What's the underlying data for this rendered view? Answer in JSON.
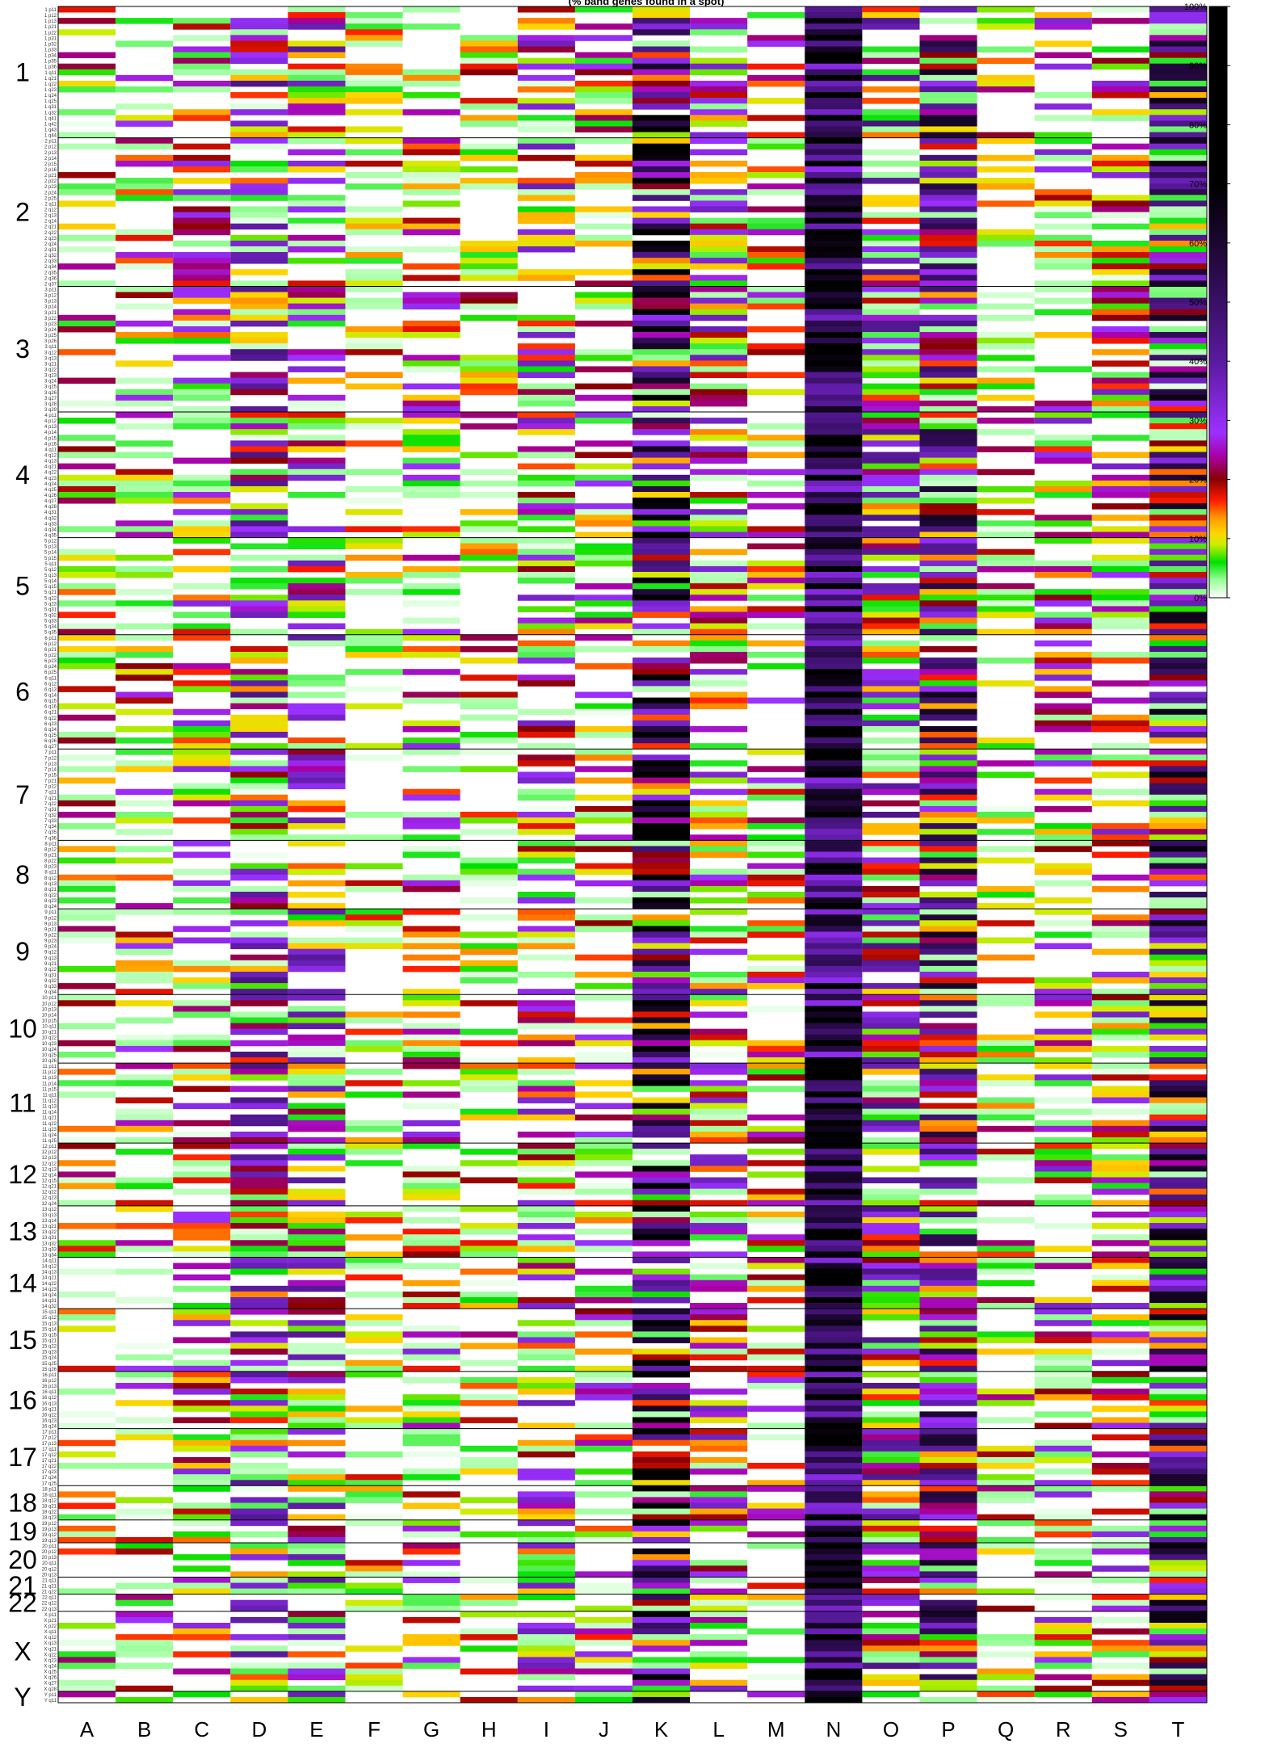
{
  "chart_data": {
    "type": "heatmap",
    "title": "(% band genes found in a spot)",
    "columns": [
      "A",
      "B",
      "C",
      "D",
      "E",
      "F",
      "G",
      "H",
      "I",
      "J",
      "K",
      "L",
      "M",
      "N",
      "O",
      "P",
      "Q",
      "R",
      "S",
      "T"
    ],
    "column_density": [
      0.3,
      0.42,
      0.55,
      0.72,
      0.65,
      0.3,
      0.48,
      0.32,
      0.58,
      0.45,
      0.9,
      0.62,
      0.4,
      1.0,
      0.8,
      0.9,
      0.35,
      0.52,
      0.55,
      0.95
    ],
    "column_level": [
      0.1,
      0.12,
      0.14,
      0.2,
      0.18,
      0.08,
      0.14,
      0.1,
      0.16,
      0.13,
      0.38,
      0.16,
      0.12,
      0.62,
      0.2,
      0.28,
      0.1,
      0.15,
      0.15,
      0.3
    ],
    "chromosomes": [
      {
        "label": "1",
        "bands": [
          "1 p11",
          "1 p12",
          "1 p13",
          "1 p21",
          "1 p22",
          "1 p31",
          "1 p32",
          "1 p33",
          "1 p34",
          "1 p35",
          "1 p36",
          "1 q11",
          "1 q21",
          "1 q22",
          "1 q23",
          "1 q24",
          "1 q25",
          "1 q31",
          "1 q32",
          "1 q41",
          "1 q42",
          "1 q43",
          "1 q44"
        ]
      },
      {
        "label": "2",
        "bands": [
          "2 p11",
          "2 p12",
          "2 p13",
          "2 p14",
          "2 p15",
          "2 p16",
          "2 p21",
          "2 p22",
          "2 p23",
          "2 p24",
          "2 p25",
          "2 q11",
          "2 q12",
          "2 q13",
          "2 q14",
          "2 q21",
          "2 q22",
          "2 q23",
          "2 q24",
          "2 q31",
          "2 q32",
          "2 q33",
          "2 q34",
          "2 q35",
          "2 q36",
          "2 q37"
        ]
      },
      {
        "label": "3",
        "bands": [
          "3 p11",
          "3 p12",
          "3 p13",
          "3 p14",
          "3 p21",
          "3 p22",
          "3 p23",
          "3 p24",
          "3 p25",
          "3 p26",
          "3 q11",
          "3 q12",
          "3 q13",
          "3 q21",
          "3 q22",
          "3 q23",
          "3 q24",
          "3 q25",
          "3 q26",
          "3 q27",
          "3 q28",
          "3 q29"
        ]
      },
      {
        "label": "4",
        "bands": [
          "4 p11",
          "4 p12",
          "4 p13",
          "4 p14",
          "4 p15",
          "4 p16",
          "4 q11",
          "4 q12",
          "4 q13",
          "4 q21",
          "4 q22",
          "4 q23",
          "4 q24",
          "4 q25",
          "4 q26",
          "4 q27",
          "4 q28",
          "4 q31",
          "4 q32",
          "4 q33",
          "4 q34",
          "4 q35"
        ]
      },
      {
        "label": "5",
        "bands": [
          "5 p12",
          "5 p13",
          "5 p14",
          "5 p15",
          "5 q11",
          "5 q12",
          "5 q13",
          "5 q14",
          "5 q15",
          "5 q21",
          "5 q22",
          "5 q23",
          "5 q31",
          "5 q32",
          "5 q33",
          "5 q34",
          "5 q35"
        ]
      },
      {
        "label": "6",
        "bands": [
          "6 p11",
          "6 p12",
          "6 p21",
          "6 p22",
          "6 p23",
          "6 p24",
          "6 p25",
          "6 q11",
          "6 q12",
          "6 q13",
          "6 q14",
          "6 q15",
          "6 q16",
          "6 q21",
          "6 q22",
          "6 q23",
          "6 q24",
          "6 q25",
          "6 q26",
          "6 q27"
        ]
      },
      {
        "label": "7",
        "bands": [
          "7 p11",
          "7 p12",
          "7 p13",
          "7 p14",
          "7 p15",
          "7 p21",
          "7 p22",
          "7 q11",
          "7 q21",
          "7 q22",
          "7 q31",
          "7 q32",
          "7 q33",
          "7 q34",
          "7 q35",
          "7 q36"
        ]
      },
      {
        "label": "8",
        "bands": [
          "8 p11",
          "8 p12",
          "8 p21",
          "8 p22",
          "8 p23",
          "8 q11",
          "8 q12",
          "8 q13",
          "8 q21",
          "8 q22",
          "8 q23",
          "8 q24"
        ]
      },
      {
        "label": "9",
        "bands": [
          "9 p11",
          "9 p12",
          "9 p13",
          "9 p21",
          "9 p22",
          "9 p23",
          "9 p24",
          "9 q12",
          "9 q13",
          "9 q21",
          "9 q22",
          "9 q31",
          "9 q32",
          "9 q33",
          "9 q34"
        ]
      },
      {
        "label": "10",
        "bands": [
          "10 p11",
          "10 p12",
          "10 p13",
          "10 p14",
          "10 p15",
          "10 q11",
          "10 q21",
          "10 q22",
          "10 q23",
          "10 q24",
          "10 q25",
          "10 q26"
        ]
      },
      {
        "label": "11",
        "bands": [
          "11 p11",
          "11 p12",
          "11 p13",
          "11 p14",
          "11 p15",
          "11 q11",
          "11 q12",
          "11 q13",
          "11 q14",
          "11 q21",
          "11 q22",
          "11 q23",
          "11 q24",
          "11 q25"
        ]
      },
      {
        "label": "12",
        "bands": [
          "12 p11",
          "12 p12",
          "12 p13",
          "12 q12",
          "12 q13",
          "12 q14",
          "12 q15",
          "12 q21",
          "12 q22",
          "12 q23",
          "12 q24"
        ]
      },
      {
        "label": "13",
        "bands": [
          "13 q12",
          "13 q13",
          "13 q14",
          "13 q21",
          "13 q22",
          "13 q31",
          "13 q32",
          "13 q33",
          "13 q34"
        ]
      },
      {
        "label": "14",
        "bands": [
          "14 q11",
          "14 q12",
          "14 q13",
          "14 q21",
          "14 q22",
          "14 q23",
          "14 q24",
          "14 q31",
          "14 q32"
        ]
      },
      {
        "label": "15",
        "bands": [
          "15 q11",
          "15 q12",
          "15 q13",
          "15 q14",
          "15 q15",
          "15 q21",
          "15 q22",
          "15 q23",
          "15 q24",
          "15 q25",
          "15 q26"
        ]
      },
      {
        "label": "16",
        "bands": [
          "16 p11",
          "16 p12",
          "16 p13",
          "16 q11",
          "16 q12",
          "16 q13",
          "16 q21",
          "16 q22",
          "16 q23",
          "16 q24"
        ]
      },
      {
        "label": "17",
        "bands": [
          "17 p11",
          "17 p12",
          "17 p13",
          "17 q11",
          "17 q12",
          "17 q21",
          "17 q22",
          "17 q23",
          "17 q24",
          "17 q25"
        ]
      },
      {
        "label": "18",
        "bands": [
          "18 p11",
          "18 q11",
          "18 q12",
          "18 q21",
          "18 q22",
          "18 q23"
        ]
      },
      {
        "label": "19",
        "bands": [
          "19 p12",
          "19 p13",
          "19 q12",
          "19 q13"
        ]
      },
      {
        "label": "20",
        "bands": [
          "20 p11",
          "20 p12",
          "20 p13",
          "20 q11",
          "20 q12",
          "20 q13"
        ]
      },
      {
        "label": "21",
        "bands": [
          "21 q11",
          "21 q21",
          "21 q22"
        ]
      },
      {
        "label": "22",
        "bands": [
          "22 q11",
          "22 q12",
          "22 q13"
        ]
      },
      {
        "label": "X",
        "bands": [
          "X p11",
          "X p21",
          "X p22",
          "X q11",
          "X q12",
          "X q13",
          "X q21",
          "X q22",
          "X q23",
          "X q24",
          "X q25",
          "X q26",
          "X q27",
          "X q28"
        ]
      },
      {
        "label": "Y",
        "bands": [
          "Y p11",
          "Y q11"
        ]
      }
    ],
    "color_scale": {
      "ticks": [
        "0%",
        "10%",
        "20%",
        "30%",
        "40%",
        "50%",
        "60%",
        "70%",
        "80%",
        "90%",
        "100%"
      ],
      "stops": [
        {
          "v": 0.0,
          "c": "#ffffff"
        },
        {
          "v": 0.03,
          "c": "#99ff99"
        },
        {
          "v": 0.06,
          "c": "#00e000"
        },
        {
          "v": 0.09,
          "c": "#ccee00"
        },
        {
          "v": 0.11,
          "c": "#ffd400"
        },
        {
          "v": 0.135,
          "c": "#ff9900"
        },
        {
          "v": 0.165,
          "c": "#ff1a00"
        },
        {
          "v": 0.2,
          "c": "#880000"
        },
        {
          "v": 0.24,
          "c": "#aa00aa"
        },
        {
          "v": 0.28,
          "c": "#9b30ff"
        },
        {
          "v": 0.4,
          "c": "#5a1a9e"
        },
        {
          "v": 0.55,
          "c": "#2a0a4a"
        },
        {
          "v": 0.7,
          "c": "#000000"
        },
        {
          "v": 1.0,
          "c": "#000000"
        }
      ]
    },
    "legend_position": "right"
  }
}
